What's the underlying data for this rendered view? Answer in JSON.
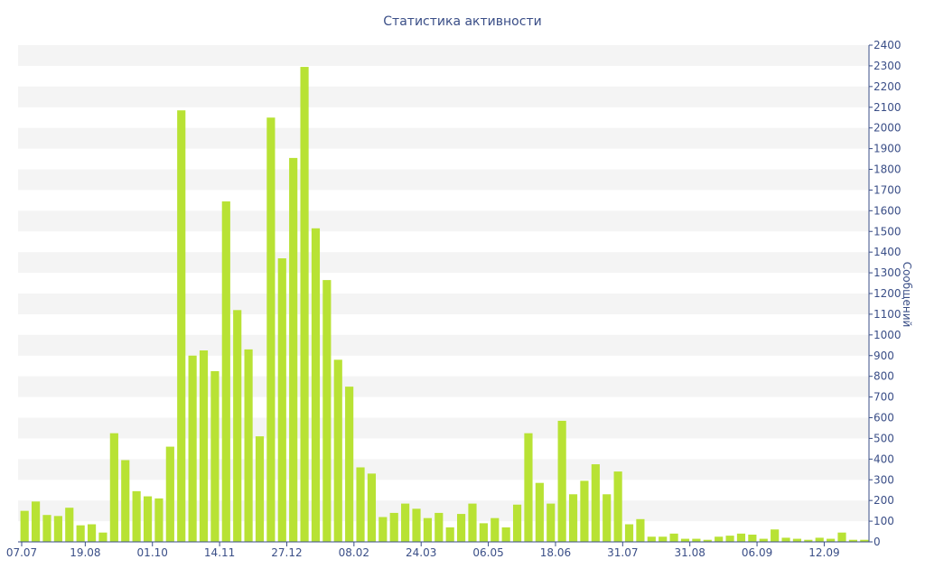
{
  "chart_data": {
    "type": "bar",
    "title": "Статистика активности",
    "xlabel": "",
    "ylabel": "Сообщений",
    "ylim": [
      0,
      2400
    ],
    "y_ticks": [
      0,
      100,
      200,
      300,
      400,
      500,
      600,
      700,
      800,
      900,
      1000,
      1100,
      1200,
      1300,
      1400,
      1500,
      1600,
      1700,
      1800,
      1900,
      2000,
      2100,
      2200,
      2300,
      2400
    ],
    "x_tick_labels": [
      "07.07",
      "19.08",
      "01.10",
      "14.11",
      "27.12",
      "08.02",
      "24.03",
      "06.05",
      "18.06",
      "31.07",
      "31.08",
      "06.09",
      "12.09"
    ],
    "y_axis_position": "right",
    "grid": "horizontal-bands",
    "bar_color": "#b8e234",
    "values": [
      150,
      195,
      130,
      125,
      165,
      80,
      85,
      45,
      525,
      395,
      245,
      220,
      210,
      460,
      2085,
      900,
      925,
      825,
      1645,
      1120,
      930,
      510,
      2050,
      1370,
      1855,
      2295,
      1515,
      1265,
      880,
      750,
      360,
      330,
      120,
      140,
      185,
      160,
      115,
      140,
      70,
      135,
      185,
      90,
      115,
      70,
      180,
      525,
      285,
      185,
      585,
      230,
      295,
      375,
      230,
      340,
      85,
      110,
      25,
      25,
      40,
      15,
      15,
      10,
      25,
      30,
      40,
      35,
      15,
      60,
      20,
      15,
      10,
      20,
      15,
      45,
      10,
      10
    ],
    "colors": {
      "text": "#3a4e87",
      "band": "#f4f4f4",
      "axis": "#3a4e87"
    }
  }
}
